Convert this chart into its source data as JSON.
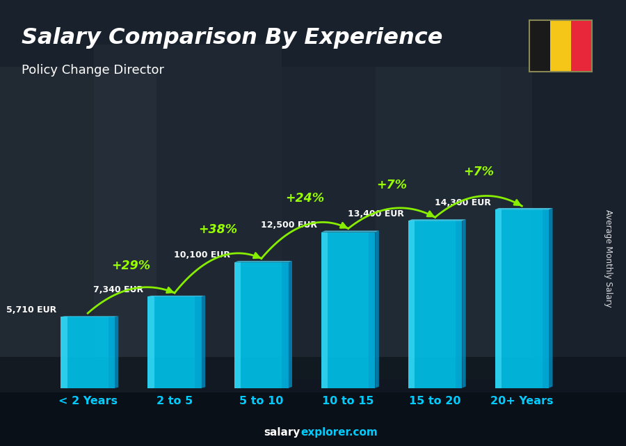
{
  "title": "Salary Comparison By Experience",
  "subtitle": "Policy Change Director",
  "ylabel": "Average Monthly Salary",
  "footer_salary": "salary",
  "footer_rest": "explorer.com",
  "categories": [
    "< 2 Years",
    "2 to 5",
    "5 to 10",
    "10 to 15",
    "15 to 20",
    "20+ Years"
  ],
  "values": [
    5710,
    7340,
    10100,
    12500,
    13400,
    14300
  ],
  "value_labels": [
    "5,710 EUR",
    "7,340 EUR",
    "10,100 EUR",
    "12,500 EUR",
    "13,400 EUR",
    "14,300 EUR"
  ],
  "pct_changes": [
    "+29%",
    "+38%",
    "+24%",
    "+7%",
    "+7%"
  ],
  "bar_face_color": "#00c8f0",
  "bar_side_color": "#0088bb",
  "bar_top_color": "#55e0ff",
  "bar_dark_color": "#006699",
  "bg_color": "#111122",
  "photo_colors": [
    "#2a3040",
    "#3a4050",
    "#283038",
    "#1e2830"
  ],
  "title_color": "#ffffff",
  "subtitle_color": "#dddddd",
  "xlabel_color": "#00ccff",
  "pct_color": "#99ff00",
  "arrow_color": "#88ee00",
  "value_label_color": "#ffffff",
  "footer_salary_color": "#ffffff",
  "footer_explorer_color": "#00ccff",
  "flag_colors": [
    "#1a1a1a",
    "#f5c518",
    "#e8273b"
  ],
  "bar_width": 0.62,
  "ylim_factor": 1.55
}
